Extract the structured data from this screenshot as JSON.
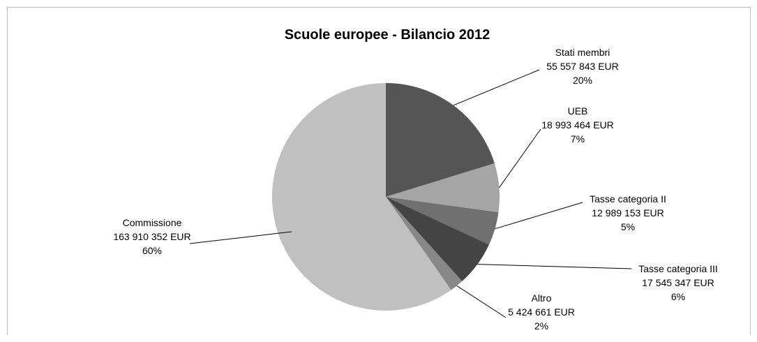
{
  "chart_data": {
    "type": "pie",
    "title": "Scuole europee - Bilancio 2012",
    "slices": [
      {
        "name": "Stati membri",
        "value": 55557843,
        "amount_label": "55 557 843 EUR",
        "percent_label": "20%",
        "color": "#555555"
      },
      {
        "name": "UEB",
        "value": 18993464,
        "amount_label": "18 993 464 EUR",
        "percent_label": "7%",
        "color": "#a5a5a5"
      },
      {
        "name": "Tasse categoria II",
        "value": 12989153,
        "amount_label": "12 989 153 EUR",
        "percent_label": "5%",
        "color": "#707070"
      },
      {
        "name": "Tasse categoria III",
        "value": 17545347,
        "amount_label": "17 545 347 EUR",
        "percent_label": "6%",
        "color": "#444444"
      },
      {
        "name": "Altro",
        "value": 5424661,
        "amount_label": "5 424 661 EUR",
        "percent_label": "2%",
        "color": "#888888"
      },
      {
        "name": "Commissione",
        "value": 163910352,
        "amount_label": "163 910 352 EUR",
        "percent_label": "60%",
        "color": "#c0c0c0"
      }
    ]
  }
}
